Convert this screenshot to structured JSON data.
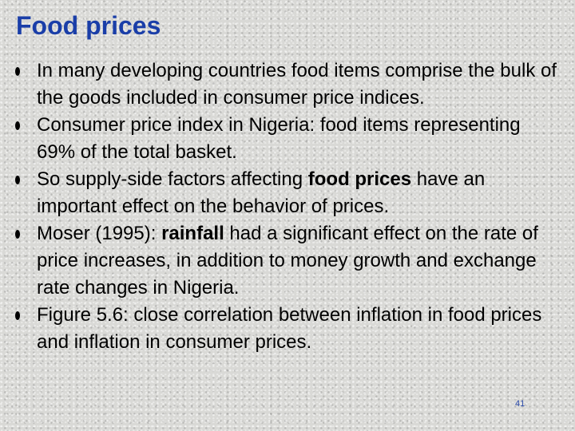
{
  "title": "Food prices",
  "colors": {
    "title": "#1a3ea8",
    "body_text": "#000000",
    "background": "#d9d9d6"
  },
  "bullets": [
    {
      "parts": [
        {
          "text": "In many developing countries food items comprise the bulk of the goods included in consumer price indices.",
          "bold": false
        }
      ]
    },
    {
      "parts": [
        {
          "text": "Consumer price index in Nigeria: food items representing 69% of the total basket.",
          "bold": false
        }
      ]
    },
    {
      "parts": [
        {
          "text": "So supply-side factors affecting ",
          "bold": false
        },
        {
          "text": "food prices",
          "bold": true
        },
        {
          "text": " have an important effect on the behavior of prices.",
          "bold": false
        }
      ]
    },
    {
      "parts": [
        {
          "text": "Moser (1995): ",
          "bold": false
        },
        {
          "text": "rainfall",
          "bold": true
        },
        {
          "text": " had a significant effect on the rate of price increases, in addition to money growth and exchange rate changes in Nigeria.",
          "bold": false
        }
      ]
    },
    {
      "parts": [
        {
          "text": "Figure 5.6: close correlation between inflation in food prices and inflation in consumer prices.",
          "bold": false
        }
      ]
    }
  ],
  "slide_number": "41"
}
